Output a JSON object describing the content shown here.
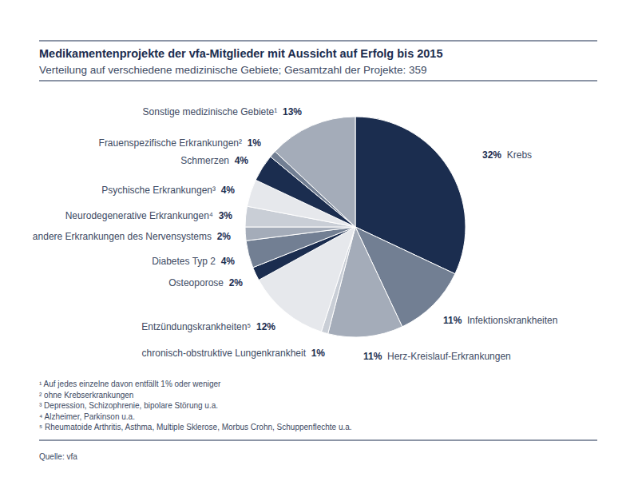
{
  "chart_data": {
    "type": "pie",
    "title": "Medikamentenprojekte der vfa-Mitglieder mit Aussicht auf Erfolg bis 2015",
    "subtitle": "Verteilung auf verschiedene medizinische Gebiete; Gesamtzahl der Projekte: 359",
    "categories": [
      "Krebs",
      "Infektionskrankheiten",
      "Herz-Kreislauf-Erkrankungen",
      "chronisch-obstruktive Lungenkrankheit",
      "Entzündungskrankheiten⁵",
      "Osteoporose",
      "Diabetes Typ 2",
      "andere Erkrankungen des Nervensystems",
      "Neurodegenerative Erkrankungen⁴",
      "Psychische Erkrankungen³",
      "Schmerzen",
      "Frauenspezifische Erkrankungen²",
      "Sonstige medizinische Gebiete¹"
    ],
    "values": [
      32,
      11,
      11,
      1,
      12,
      2,
      4,
      2,
      3,
      4,
      4,
      1,
      13
    ],
    "value_labels": [
      "32%",
      "11%",
      "11%",
      "1%",
      "12%",
      "2%",
      "4%",
      "2%",
      "3%",
      "4%",
      "4%",
      "1%",
      "13%"
    ],
    "colors": [
      "#1b2d4f",
      "#727f93",
      "#a4acb9",
      "#c9ced6",
      "#e6e8ec",
      "#1b2d4f",
      "#727f93",
      "#a4acb9",
      "#c9ced6",
      "#e6e8ec",
      "#1b2d4f",
      "#727f93",
      "#a4acb9"
    ],
    "data_labels": true,
    "footnotes": [
      "¹ Auf jedes einzelne davon entfällt 1% oder weniger",
      "² ohne Krebserkrankungen",
      "³ Depression, Schizophrenie, bipolare Störung u.a.",
      "⁴ Alzheimer, Parkinson u.a.",
      "⁵ Rheumatoide Arthritis, Asthma, Multiple Sklerose, Morbus Crohn, Schuppenflechte u.a."
    ],
    "source": "Quelle: vfa"
  }
}
